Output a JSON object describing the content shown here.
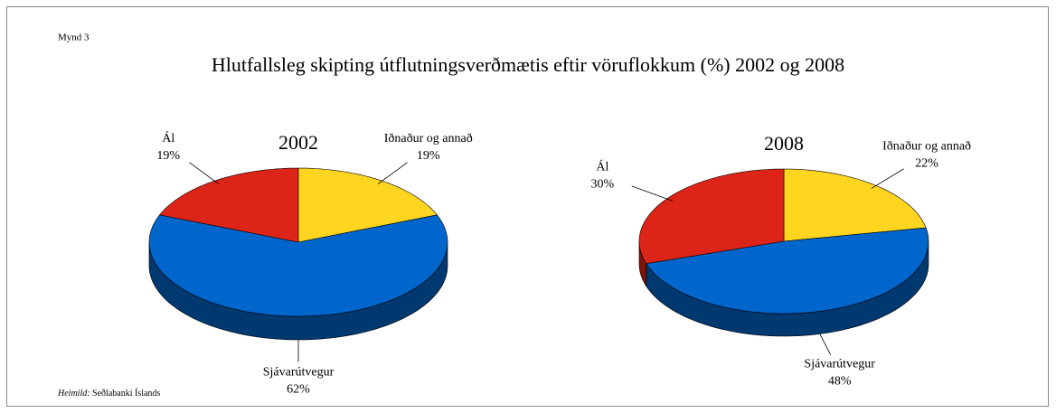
{
  "figure_label": "Mynd 3",
  "title": "Hlutfallsleg skipting útflutningsverðmætis eftir vöruflokkum (%) 2002 og 2008",
  "source_label": "Heimild:",
  "source": "Seðlabanki Íslands",
  "chart_data": [
    {
      "type": "pie",
      "title": "2002",
      "categories": [
        "Iðnaður og annað",
        "Sjávarútvegur",
        "Ál"
      ],
      "values": [
        19,
        62,
        19
      ],
      "value_labels": [
        "19%",
        "62%",
        "19%"
      ],
      "colors": [
        "#ffd51f",
        "#0066cc",
        "#dd2418"
      ]
    },
    {
      "type": "pie",
      "title": "2008",
      "categories": [
        "Iðnaður og annað",
        "Sjávarútvegur",
        "Ál"
      ],
      "values": [
        22,
        48,
        30
      ],
      "value_labels": [
        "22%",
        "48%",
        "30%"
      ],
      "colors": [
        "#ffd51f",
        "#0066cc",
        "#dd2418"
      ]
    }
  ]
}
